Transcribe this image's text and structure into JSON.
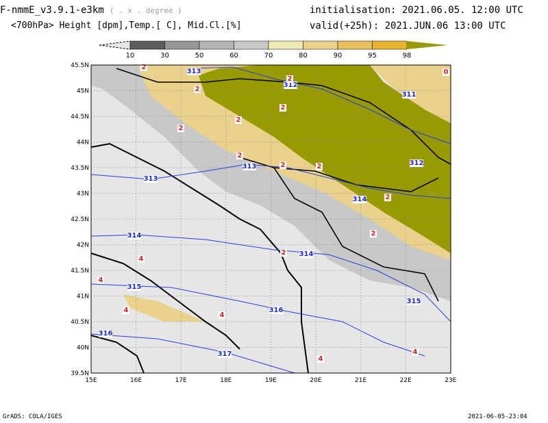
{
  "header": {
    "title": "F-nmmE_v3.9.1-e3km",
    "units": "( . x . degree )",
    "subtitle": "<700hPa> Height [dpm],Temp.[ C], Mid.Cl.[%]",
    "initialisation": "initialisation: 2021.06.05.  12:00 UTC",
    "valid": "valid(+25h): 2021.JUN.06 13:00 UTC"
  },
  "colorbar": {
    "labels": [
      "10",
      "30",
      "50",
      "60",
      "70",
      "80",
      "90",
      "95",
      "98"
    ],
    "colors": [
      "#e6e6e6",
      "#5c5c5c",
      "#969696",
      "#b4b4b4",
      "#c8c8c8",
      "#eeeab4",
      "#ead28c",
      "#e8c060",
      "#e8b430",
      "#999900"
    ]
  },
  "axes": {
    "lat_labels": [
      "45.5N",
      "45N",
      "44.5N",
      "44N",
      "43.5N",
      "43N",
      "42.5N",
      "42N",
      "41.5N",
      "41N",
      "40.5N",
      "40N",
      "39.5N"
    ],
    "lon_labels": [
      "15E",
      "16E",
      "17E",
      "18E",
      "19E",
      "20E",
      "21E",
      "22E",
      "23E"
    ]
  },
  "height_contours": [
    "311",
    "312",
    "312",
    "313",
    "313",
    "313",
    "314",
    "314",
    "314",
    "315",
    "315",
    "316",
    "316",
    "317"
  ],
  "temp_labels": [
    "2",
    "2",
    "2",
    "2",
    "2",
    "2",
    "2",
    "2",
    "2",
    "2",
    "2",
    "2",
    "4",
    "4",
    "4",
    "4",
    "4",
    "4",
    "0"
  ],
  "footer": {
    "left": "GrADS: COLA/IGES",
    "right": "2021-06-05-23:04"
  }
}
